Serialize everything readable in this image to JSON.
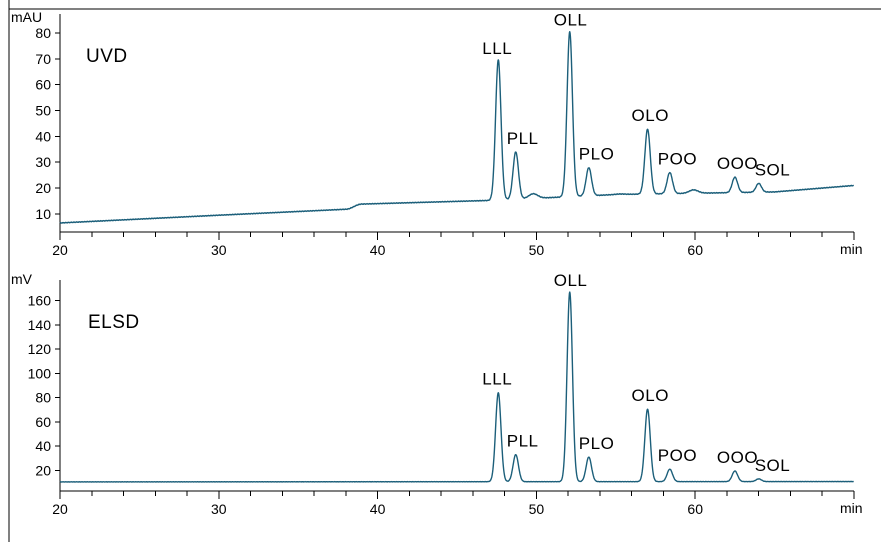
{
  "chart_data": [
    {
      "type": "line",
      "detector": "UVD",
      "ylabel": "mAU",
      "xlabel": "min",
      "xlim": [
        20,
        70
      ],
      "ylim": [
        3,
        85
      ],
      "x_ticks": [
        20,
        30,
        40,
        50,
        60,
        70
      ],
      "x_tick_labels": [
        "20",
        "30",
        "40",
        "50",
        "60",
        ""
      ],
      "y_ticks": [
        10,
        20,
        30,
        40,
        50,
        60,
        70,
        80
      ],
      "grid": false,
      "baseline": [
        [
          20,
          6.5
        ],
        [
          30,
          9.5
        ],
        [
          38,
          11.8
        ],
        [
          39,
          13.8
        ],
        [
          47,
          15.2
        ],
        [
          55,
          17.5
        ],
        [
          65,
          18.5
        ],
        [
          70,
          21.0
        ]
      ],
      "peaks": [
        {
          "name": "LLL",
          "x": 47.6,
          "height": 69.6
        },
        {
          "name": "PLL",
          "x": 48.7,
          "height": 34.0
        },
        {
          "name": "OLL",
          "x": 52.1,
          "height": 80.5
        },
        {
          "name": "PLO",
          "x": 53.3,
          "height": 27.9
        },
        {
          "name": "OLO",
          "x": 57.0,
          "height": 42.8
        },
        {
          "name": "POO",
          "x": 58.4,
          "height": 26.0
        },
        {
          "name": "OOO",
          "x": 62.5,
          "height": 24.2
        },
        {
          "name": "SOL",
          "x": 64.0,
          "height": 21.8
        }
      ],
      "minor_bumps": [
        {
          "x": 49.8,
          "height": 17.8
        },
        {
          "x": 55.3,
          "height": 17.7
        },
        {
          "x": 59.9,
          "height": 19.3
        }
      ]
    },
    {
      "type": "line",
      "detector": "ELSD",
      "ylabel": "mV",
      "xlabel": "min",
      "xlim": [
        20,
        70
      ],
      "ylim": [
        3,
        172
      ],
      "x_ticks": [
        20,
        30,
        40,
        50,
        60,
        70
      ],
      "x_tick_labels": [
        "20",
        "30",
        "40",
        "50",
        "60",
        ""
      ],
      "y_ticks": [
        20,
        40,
        60,
        80,
        100,
        120,
        140,
        160
      ],
      "grid": false,
      "baseline": [
        [
          20,
          10.5
        ],
        [
          70,
          10.8
        ]
      ],
      "peaks": [
        {
          "name": "LLL",
          "x": 47.6,
          "height": 84.0
        },
        {
          "name": "PLL",
          "x": 48.7,
          "height": 33.0
        },
        {
          "name": "OLL",
          "x": 52.1,
          "height": 167.0
        },
        {
          "name": "PLO",
          "x": 53.3,
          "height": 31.0
        },
        {
          "name": "OLO",
          "x": 57.0,
          "height": 70.5
        },
        {
          "name": "POO",
          "x": 58.4,
          "height": 21.0
        },
        {
          "name": "OOO",
          "x": 62.5,
          "height": 19.5
        },
        {
          "name": "SOL",
          "x": 64.0,
          "height": 13.0
        }
      ],
      "minor_bumps": []
    }
  ],
  "colors": {
    "trace": "#1c5f7a",
    "axis": "#000000"
  }
}
